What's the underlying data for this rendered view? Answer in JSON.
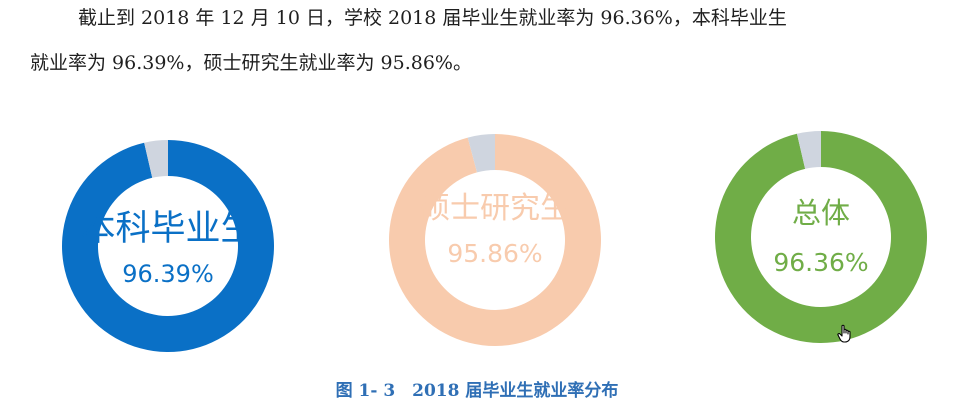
{
  "text": {
    "line1": "截止到 2018 年 12 月 10 日，学校 2018 届毕业生就业率为 96.36%，本科毕业生",
    "line2": "就业率为 96.39%，硕士研究生就业率为 95.86%。"
  },
  "chart_data": [
    {
      "type": "pie",
      "title": "本科毕业生",
      "value_label": "96.39%",
      "values": [
        96.39,
        3.61
      ],
      "colors": [
        "#0A70C6",
        "#CFD5DF"
      ],
      "label_color": "#0A70C6"
    },
    {
      "type": "pie",
      "title": "硕士研究生",
      "value_label": "95.86%",
      "values": [
        95.86,
        4.14
      ],
      "colors": [
        "#F8CBAD",
        "#CFD5DF"
      ],
      "label_color": "#F8CBAD"
    },
    {
      "type": "pie",
      "title": "总体",
      "value_label": "96.36%",
      "values": [
        96.36,
        3.64
      ],
      "colors": [
        "#70AD47",
        "#CFD5DF"
      ],
      "label_color": "#70AD47"
    }
  ],
  "caption": "图 1- 3　2018 届毕业生就业率分布",
  "cursor": {
    "icon": "hand-pointer-icon"
  }
}
